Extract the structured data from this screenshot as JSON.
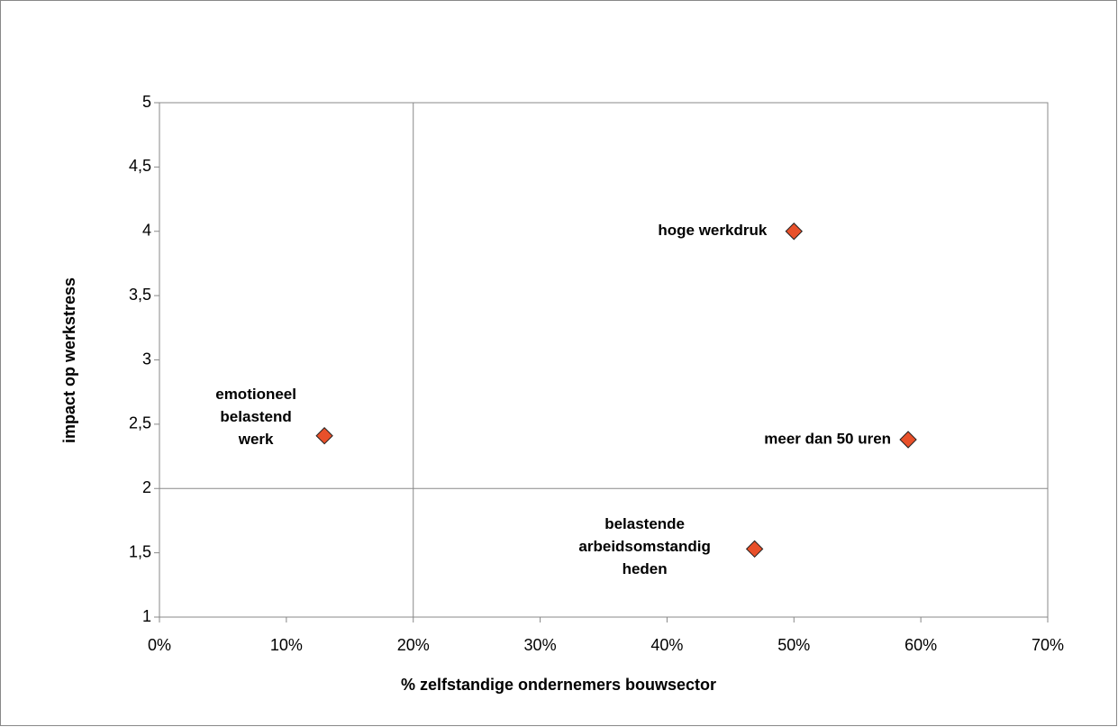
{
  "chart_data": {
    "type": "scatter",
    "x_label": "% zelfstandige ondernemers bouwsector",
    "y_label": "impact op werkstress",
    "x": [
      13,
      50,
      59,
      46.9
    ],
    "values": [
      2.41,
      4.0,
      2.38,
      1.53
    ],
    "labels": [
      [
        "emotioneel",
        "belastend",
        "werk"
      ],
      [
        "hoge werkdruk"
      ],
      [
        "meer dan 50 uren"
      ],
      [
        "belastende",
        "arbeidsomstandig",
        "heden"
      ]
    ],
    "color": "#e8502a",
    "xlim": [
      0,
      70
    ],
    "xticks": [
      {
        "value": 0,
        "label": "0%"
      },
      {
        "value": 10,
        "label": "10%"
      },
      {
        "value": 20,
        "label": "20%"
      },
      {
        "value": 30,
        "label": "30%"
      },
      {
        "value": 40,
        "label": "40%"
      },
      {
        "value": 50,
        "label": "50%"
      },
      {
        "value": 60,
        "label": "60%"
      },
      {
        "value": 70,
        "label": "70%"
      }
    ],
    "ylim": [
      1,
      5
    ],
    "yticks": [
      1,
      {
        "value": 1.5,
        "label": "1,5"
      },
      2,
      {
        "value": 2.5,
        "label": "2,5"
      },
      3,
      {
        "value": 3.5,
        "label": "3,5"
      },
      4,
      {
        "value": 4.5,
        "label": "4,5"
      },
      5
    ],
    "quadrant_lines": {
      "x": 20,
      "y": 2
    }
  }
}
